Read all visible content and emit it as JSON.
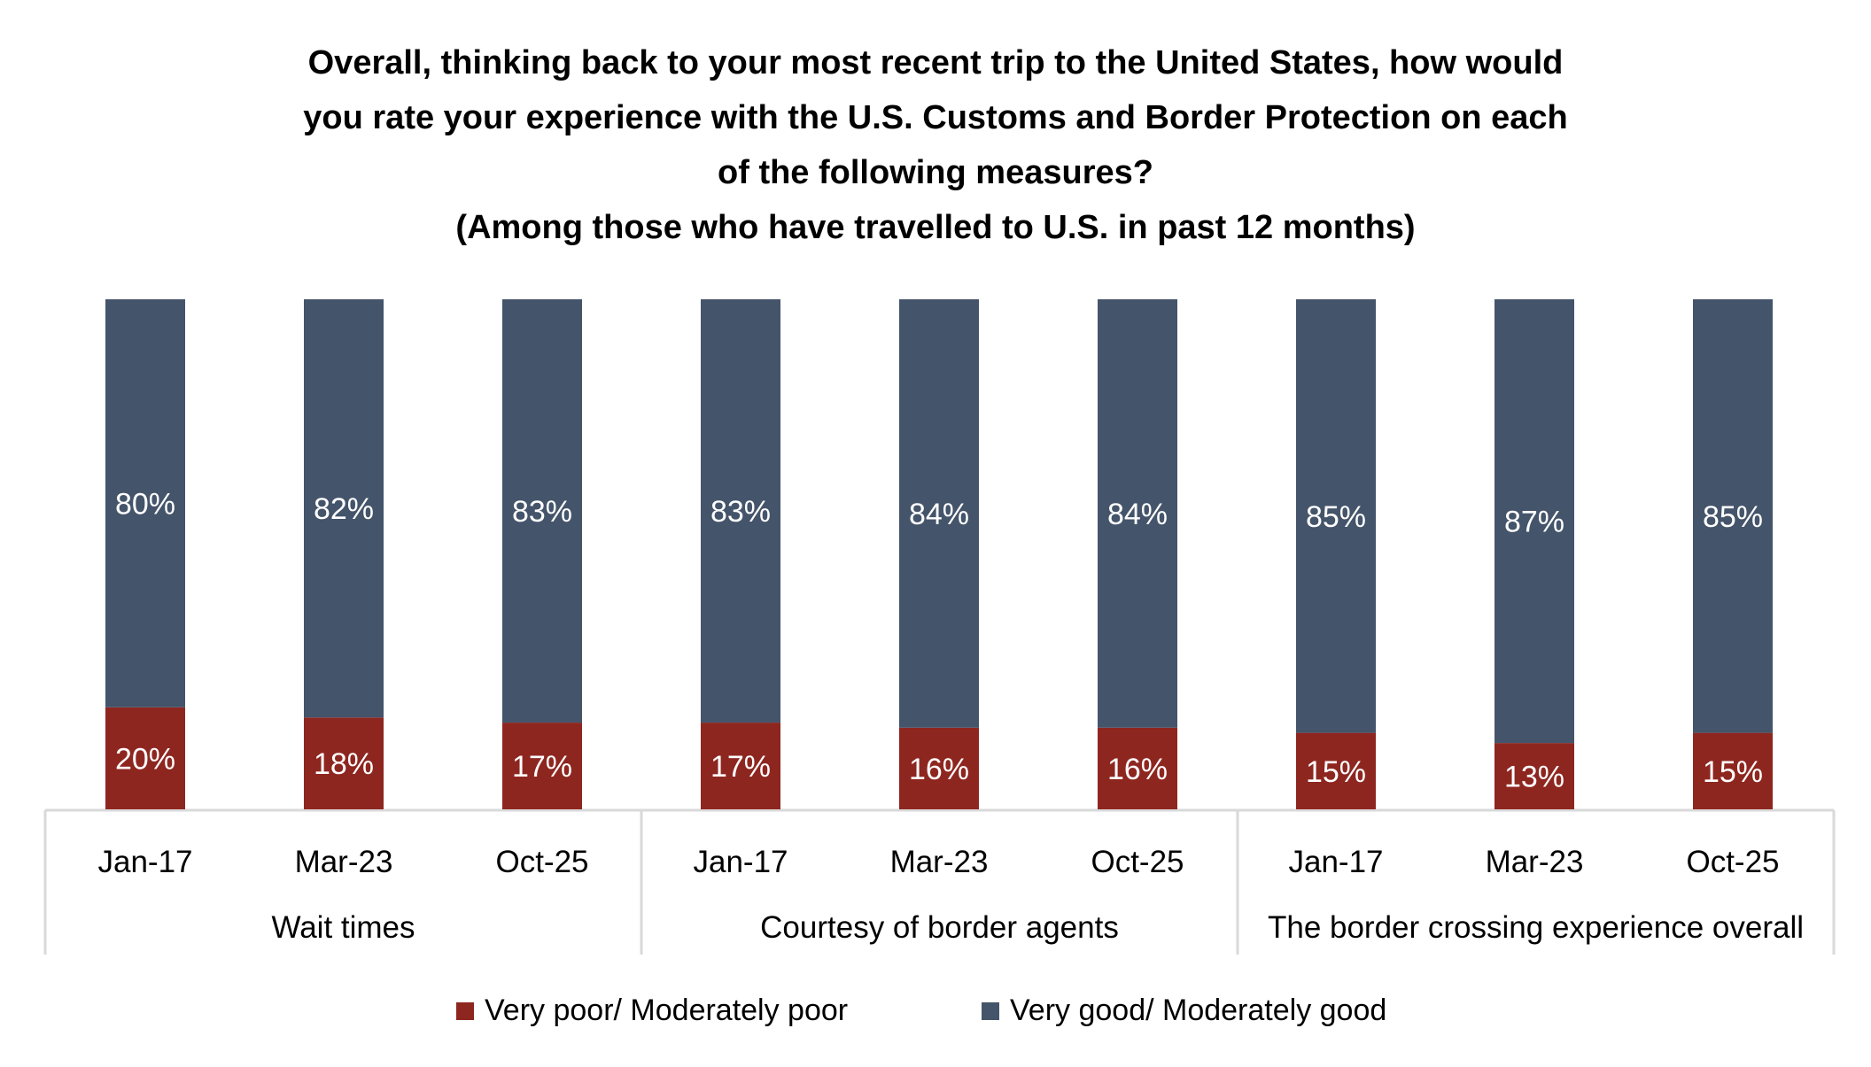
{
  "chart_data": {
    "type": "bar",
    "stacked": true,
    "title_lines": [
      "Overall, thinking back to your most recent trip to the United States, how would",
      "you rate your experience with the U.S. Customs and Border Protection on each",
      "of the following measures?",
      "(Among those who have travelled to U.S. in past 12 months)"
    ],
    "groups": [
      {
        "label": "Wait times",
        "categories": [
          "Jan-17",
          "Mar-23",
          "Oct-25"
        ]
      },
      {
        "label": "Courtesy of border agents",
        "categories": [
          "Jan-17",
          "Mar-23",
          "Oct-25"
        ]
      },
      {
        "label": "The border crossing experience overall",
        "categories": [
          "Jan-17",
          "Mar-23",
          "Oct-25"
        ]
      }
    ],
    "series": [
      {
        "name": "Very poor/ Moderately poor",
        "color": "#8E2620",
        "values": [
          20,
          18,
          17,
          17,
          16,
          16,
          15,
          13,
          15
        ]
      },
      {
        "name": "Very good/ Moderately good",
        "color": "#44546A",
        "values": [
          80,
          82,
          83,
          83,
          84,
          84,
          85,
          87,
          85
        ]
      }
    ],
    "value_format": "percent",
    "ylim": [
      0,
      100
    ],
    "grid": false,
    "legend_position": "bottom"
  }
}
